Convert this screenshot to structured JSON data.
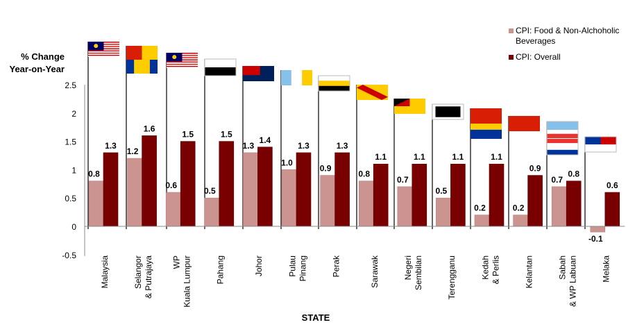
{
  "chart_data": {
    "type": "bar",
    "title": "",
    "ylabel": [
      "% Change",
      "Year-on-Year"
    ],
    "xlabel": "STATE",
    "ylim": [
      -0.5,
      2.5
    ],
    "yticks": [
      -0.5,
      0,
      0.5,
      1,
      1.5,
      2,
      2.5
    ],
    "ytick_labels": [
      "-0.5",
      "0",
      "0.5",
      "1",
      "1.5",
      "2",
      "2.5"
    ],
    "grid": false,
    "legend_position": "top-right",
    "categories": [
      [
        "Malaysia"
      ],
      [
        "Selangor",
        "& Putrajaya"
      ],
      [
        "WP",
        "Kuala Lumpur"
      ],
      [
        "Pahang"
      ],
      [
        "Johor"
      ],
      [
        "Pulau",
        "Pinang"
      ],
      [
        "Perak"
      ],
      [
        "Sarawak"
      ],
      [
        "Negeri",
        "Sembilan"
      ],
      [
        "Terengganu"
      ],
      [
        "Kedah",
        "& Perlis"
      ],
      [
        "Kelantan"
      ],
      [
        "Sabah",
        "& WP Labuan"
      ],
      [
        "Melaka"
      ]
    ],
    "series": [
      {
        "name": "CPI: Food & Non-Alchoholic Beverages",
        "legend_lines": [
          "CPI: Food & Non-Alchoholic",
          "Beverages"
        ],
        "color": "#cc9490",
        "values": [
          0.8,
          1.2,
          0.6,
          0.5,
          1.3,
          1.0,
          0.9,
          0.8,
          0.7,
          0.5,
          0.2,
          0.2,
          0.7,
          -0.1
        ],
        "labels": [
          "0.8",
          "1.2",
          "0.6",
          "0.5",
          "1.3",
          "1.0",
          "0.9",
          "0.8",
          "0.7",
          "0.5",
          "0.2",
          "0.2",
          "0.7",
          "-0.1"
        ]
      },
      {
        "name": "CPI: Overall",
        "legend_lines": [
          "CPI: Overall"
        ],
        "color": "#780000",
        "values": [
          1.3,
          1.6,
          1.5,
          1.5,
          1.4,
          1.3,
          1.3,
          1.1,
          1.1,
          1.1,
          1.1,
          0.9,
          0.8,
          0.6
        ],
        "labels": [
          "1.3",
          "1.6",
          "1.5",
          "1.5",
          "1.4",
          "1.3",
          "1.3",
          "1.1",
          "1.1",
          "1.1",
          "1.1",
          "0.9",
          "0.8",
          "0.6"
        ]
      }
    ]
  }
}
